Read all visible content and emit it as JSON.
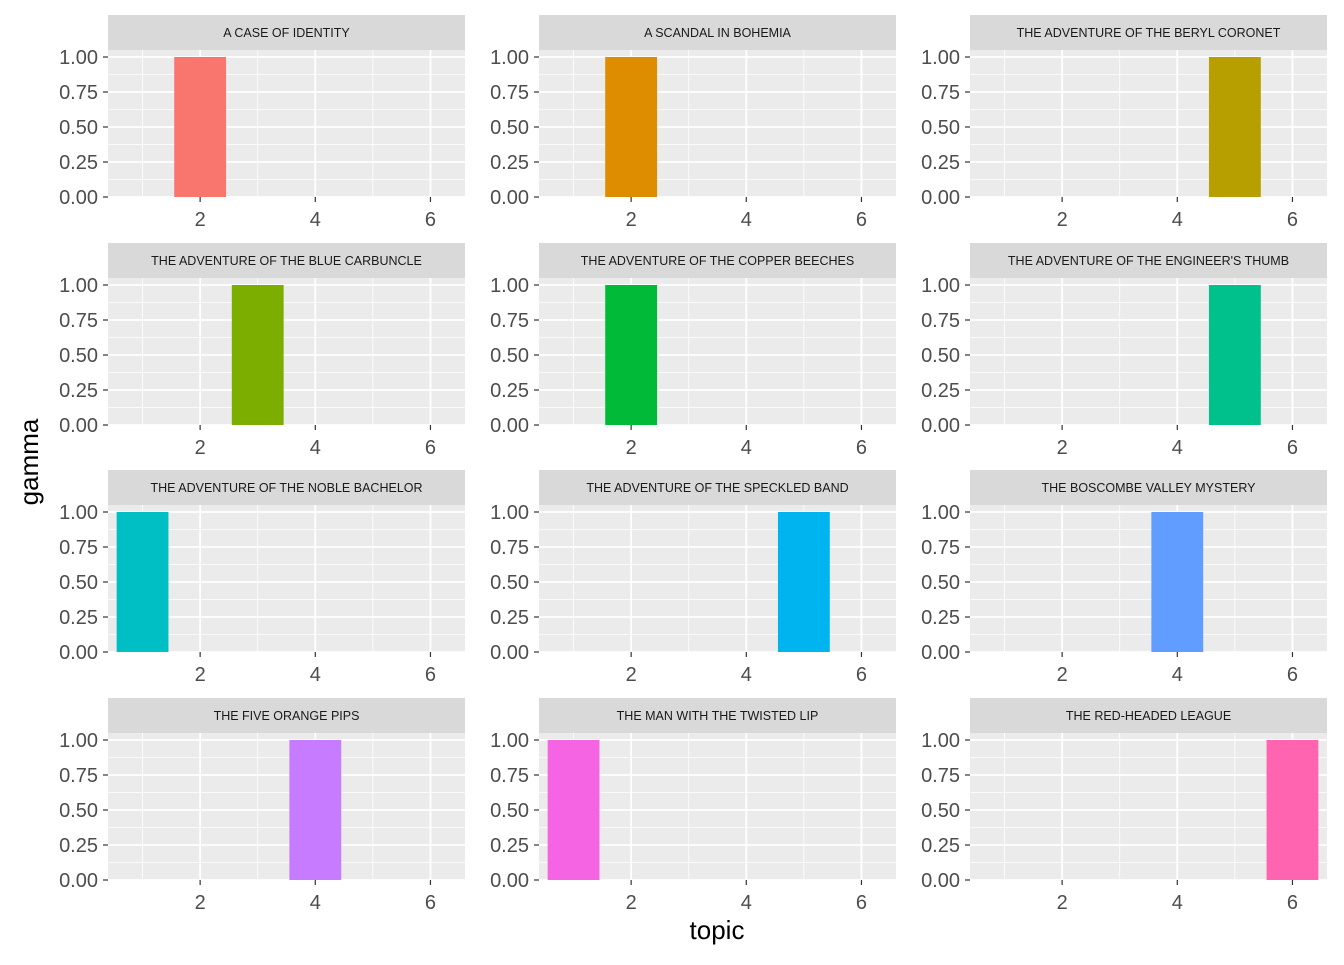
{
  "chart_data": {
    "type": "bar",
    "layout": "facet-wrap",
    "xlabel": "topic",
    "ylabel": "gamma",
    "xlim": [
      0.4,
      6.6
    ],
    "ylim": [
      0,
      1.05
    ],
    "x_ticks": [
      2,
      4,
      6
    ],
    "y_ticks": [
      "0.00",
      "0.25",
      "0.50",
      "0.75",
      "1.00"
    ],
    "grid": true,
    "legend": "none",
    "facets": [
      {
        "title": "A CASE OF IDENTITY",
        "topic": 2,
        "gamma": 1.0,
        "color": "#F8766D"
      },
      {
        "title": "A SCANDAL IN BOHEMIA",
        "topic": 2,
        "gamma": 1.0,
        "color": "#DE8C00"
      },
      {
        "title": "THE ADVENTURE OF THE BERYL CORONET",
        "topic": 5,
        "gamma": 1.0,
        "color": "#B79F00"
      },
      {
        "title": "THE ADVENTURE OF THE BLUE CARBUNCLE",
        "topic": 3,
        "gamma": 1.0,
        "color": "#7CAE00"
      },
      {
        "title": "THE ADVENTURE OF THE COPPER BEECHES",
        "topic": 2,
        "gamma": 1.0,
        "color": "#00BA38"
      },
      {
        "title": "THE ADVENTURE OF THE ENGINEER'S THUMB",
        "topic": 5,
        "gamma": 1.0,
        "color": "#00C08B"
      },
      {
        "title": "THE ADVENTURE OF THE NOBLE BACHELOR",
        "topic": 1,
        "gamma": 1.0,
        "color": "#00BFC4"
      },
      {
        "title": "THE ADVENTURE OF THE SPECKLED BAND",
        "topic": 5,
        "gamma": 1.0,
        "color": "#00B4F0"
      },
      {
        "title": "THE BOSCOMBE VALLEY MYSTERY",
        "topic": 4,
        "gamma": 1.0,
        "color": "#619CFF"
      },
      {
        "title": "THE FIVE ORANGE PIPS",
        "topic": 4,
        "gamma": 1.0,
        "color": "#C77CFF"
      },
      {
        "title": "THE MAN WITH THE TWISTED LIP",
        "topic": 1,
        "gamma": 1.0,
        "color": "#F564E3"
      },
      {
        "title": "THE RED-HEADED LEAGUE",
        "topic": 6,
        "gamma": 1.0,
        "color": "#FF64B0"
      }
    ]
  }
}
